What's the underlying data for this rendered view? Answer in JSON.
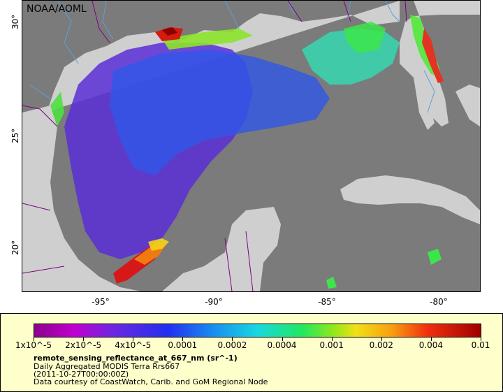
{
  "credit": "NOAA/AOML",
  "map": {
    "lat_ticks": [
      "30°",
      "25°",
      "20°"
    ],
    "lon_ticks": [
      "-95°",
      "-90°",
      "-85°",
      "-80°"
    ],
    "colors": {
      "ocean_nodata": "#7b7b7b",
      "land": "#cfcfcf",
      "rivers": "#5aa0e0",
      "borders": "#800080"
    }
  },
  "legend": {
    "colorbar_ticks": [
      "1x10^-5",
      "2x10^-5",
      "4x10^-5",
      "0.0001",
      "0.0002",
      "0.0004",
      "0.001",
      "0.002",
      "0.004",
      "0.01"
    ],
    "variable": "remote_sensing_reflectance_at_667_nm (sr^-1)",
    "product": "Daily Aggregated MODIS Terra Rrs667",
    "time": "(2011-10-27T00:00:00Z)",
    "source": "Data courtesy of CoastWatch, Carib. and GoM Regional Node",
    "background": "#ffffcc"
  }
}
